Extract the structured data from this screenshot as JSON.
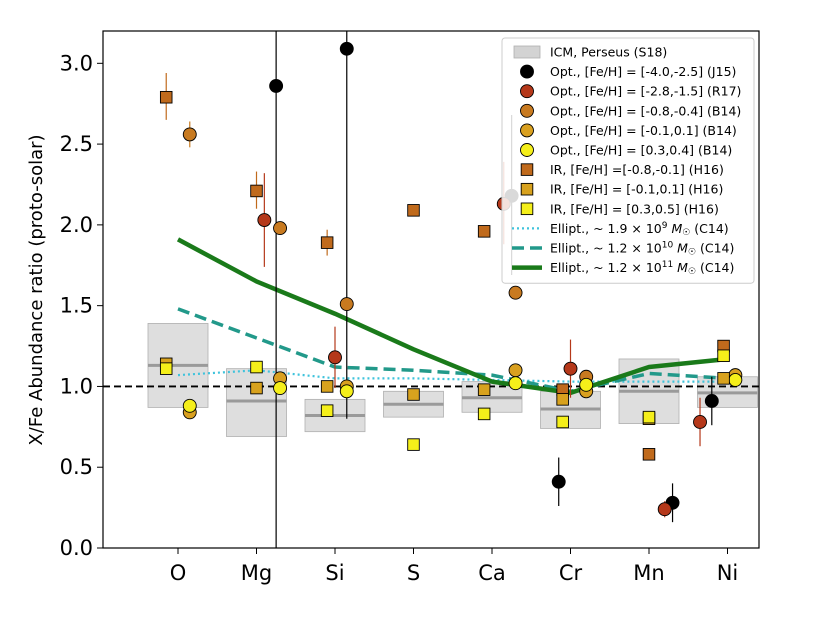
{
  "chart_data": {
    "type": "scatter",
    "title": "",
    "xlabel": "",
    "ylabel": "X/Fe Abundance ratio (proto-solar)",
    "categories": [
      "O",
      "Mg",
      "Si",
      "S",
      "Ca",
      "Cr",
      "Mn",
      "Ni"
    ],
    "ylim": [
      0.0,
      3.2
    ],
    "yticks": [
      "0.0",
      "0.5",
      "1.0",
      "1.5",
      "2.0",
      "2.5",
      "3.0"
    ],
    "reference_line": 1.0,
    "icm_boxes": [
      {
        "element": "O",
        "low": 0.87,
        "high": 1.39,
        "mean": 1.13
      },
      {
        "element": "Mg",
        "low": 0.69,
        "high": 1.11,
        "mean": 0.91
      },
      {
        "element": "Si",
        "low": 0.72,
        "high": 0.92,
        "mean": 0.82
      },
      {
        "element": "S",
        "low": 0.81,
        "high": 0.97,
        "mean": 0.89
      },
      {
        "element": "Ca",
        "low": 0.84,
        "high": 1.03,
        "mean": 0.93
      },
      {
        "element": "Cr",
        "low": 0.74,
        "high": 0.97,
        "mean": 0.86
      },
      {
        "element": "Mn",
        "low": 0.77,
        "high": 1.17,
        "mean": 0.97
      },
      {
        "element": "Ni",
        "low": 0.87,
        "high": 1.06,
        "mean": 0.96
      }
    ],
    "series": [
      {
        "name": "ICM, Perseus (S18)",
        "marker": "box",
        "color": "#d8d8d8"
      },
      {
        "name": "Opt., [Fe/H] = [-4.0,-2.5] (J15)",
        "marker": "circle",
        "color": "#000000",
        "points": [
          {
            "x": "Mg",
            "dx": 0.25,
            "y": 2.86,
            "lo": 0.0,
            "hi": 3.2
          },
          {
            "x": "Si",
            "dx": 0.15,
            "y": 3.09,
            "lo": 0.8,
            "hi": 3.2
          },
          {
            "x": "Ca",
            "dx": 0.25,
            "y": 2.18,
            "lo": 1.69,
            "hi": 2.68
          },
          {
            "x": "Cr",
            "dx": -0.15,
            "y": 0.41,
            "lo": 0.26,
            "hi": 0.56
          },
          {
            "x": "Mn",
            "dx": 0.3,
            "y": 0.28,
            "lo": 0.16,
            "hi": 0.4
          },
          {
            "x": "Ni",
            "dx": -0.2,
            "y": 0.91,
            "lo": 0.76,
            "hi": 1.06
          }
        ]
      },
      {
        "name": "Opt., [Fe/H] = [-2.8,-1.5] (R17)",
        "marker": "circle",
        "color": "#b5381a",
        "points": [
          {
            "x": "Mg",
            "dx": 0.1,
            "y": 2.03,
            "lo": 1.74,
            "hi": 2.32
          },
          {
            "x": "Si",
            "dx": 0.0,
            "y": 1.18,
            "lo": 0.99,
            "hi": 1.37
          },
          {
            "x": "Ca",
            "dx": 0.15,
            "y": 2.13,
            "lo": 1.88,
            "hi": 2.39
          },
          {
            "x": "Cr",
            "dx": 0.0,
            "y": 1.11,
            "lo": 0.93,
            "hi": 1.29
          },
          {
            "x": "Mn",
            "dx": 0.2,
            "y": 0.24,
            "lo": 0.19,
            "hi": 0.29
          },
          {
            "x": "Ni",
            "dx": -0.35,
            "y": 0.78,
            "lo": 0.63,
            "hi": 0.93
          }
        ]
      },
      {
        "name": "Opt., [Fe/H] = [-0.8,-0.4] (B14)",
        "marker": "circle",
        "color": "#c87a20",
        "points": [
          {
            "x": "O",
            "dx": 0.15,
            "y": 2.56,
            "lo": 2.48,
            "hi": 2.64
          },
          {
            "x": "Mg",
            "dx": 0.3,
            "y": 1.98,
            "lo": 1.98,
            "hi": 1.98
          },
          {
            "x": "Si",
            "dx": 0.15,
            "y": 1.51,
            "lo": 1.51,
            "hi": 1.51
          },
          {
            "x": "Ca",
            "dx": 0.3,
            "y": 1.58,
            "lo": 1.58,
            "hi": 1.58
          },
          {
            "x": "Cr",
            "dx": 0.2,
            "y": 1.06,
            "lo": 1.06,
            "hi": 1.06
          }
        ]
      },
      {
        "name": "Opt., [Fe/H] = [-0.1,0.1] (B14)",
        "marker": "circle",
        "color": "#d9a020",
        "points": [
          {
            "x": "O",
            "dx": 0.15,
            "y": 0.84,
            "lo": 0.84,
            "hi": 0.84
          },
          {
            "x": "Mg",
            "dx": 0.3,
            "y": 1.05,
            "lo": 1.05,
            "hi": 1.05
          },
          {
            "x": "Si",
            "dx": 0.15,
            "y": 1.0,
            "lo": 1.0,
            "hi": 1.0
          },
          {
            "x": "Ca",
            "dx": 0.3,
            "y": 1.1,
            "lo": 1.1,
            "hi": 1.1
          },
          {
            "x": "Cr",
            "dx": 0.2,
            "y": 0.97,
            "lo": 0.97,
            "hi": 0.97
          },
          {
            "x": "Ni",
            "dx": 0.1,
            "y": 1.07,
            "lo": 1.07,
            "hi": 1.07
          }
        ]
      },
      {
        "name": "Opt., [Fe/H] = [0.3,0.4] (B14)",
        "marker": "circle",
        "color": "#f5ef1a",
        "points": [
          {
            "x": "O",
            "dx": 0.15,
            "y": 0.88,
            "lo": 0.88,
            "hi": 0.88
          },
          {
            "x": "Mg",
            "dx": 0.3,
            "y": 0.99,
            "lo": 0.99,
            "hi": 0.99
          },
          {
            "x": "Si",
            "dx": 0.15,
            "y": 0.97,
            "lo": 0.97,
            "hi": 0.97
          },
          {
            "x": "Ca",
            "dx": 0.3,
            "y": 1.02,
            "lo": 1.02,
            "hi": 1.02
          },
          {
            "x": "Cr",
            "dx": 0.2,
            "y": 1.01,
            "lo": 1.01,
            "hi": 1.01
          },
          {
            "x": "Ni",
            "dx": 0.1,
            "y": 1.04,
            "lo": 1.04,
            "hi": 1.04
          }
        ]
      },
      {
        "name": "IR, [Fe/H] =[-0.8,-0.1] (H16)",
        "marker": "square",
        "color": "#c06a1c",
        "points": [
          {
            "x": "O",
            "dx": -0.15,
            "y": 2.79,
            "lo": 2.65,
            "hi": 2.94
          },
          {
            "x": "Mg",
            "dx": 0.0,
            "y": 2.21,
            "lo": 2.1,
            "hi": 2.33
          },
          {
            "x": "Si",
            "dx": -0.1,
            "y": 1.89,
            "lo": 1.81,
            "hi": 1.97
          },
          {
            "x": "S",
            "dx": 0.0,
            "y": 2.09,
            "lo": 2.09,
            "hi": 2.09
          },
          {
            "x": "Ca",
            "dx": -0.1,
            "y": 1.96,
            "lo": 1.96,
            "hi": 1.96
          },
          {
            "x": "Cr",
            "dx": -0.1,
            "y": 0.98,
            "lo": 0.98,
            "hi": 0.98
          },
          {
            "x": "Mn",
            "dx": 0.0,
            "y": 0.58,
            "lo": 0.58,
            "hi": 0.58
          },
          {
            "x": "Ni",
            "dx": -0.05,
            "y": 1.25,
            "lo": 1.25,
            "hi": 1.25
          }
        ]
      },
      {
        "name": "IR, [Fe/H] = [-0.1,0.1] (H16)",
        "marker": "square",
        "color": "#d8a21e",
        "points": [
          {
            "x": "O",
            "dx": -0.15,
            "y": 1.14,
            "lo": 1.14,
            "hi": 1.14
          },
          {
            "x": "Mg",
            "dx": 0.0,
            "y": 0.99,
            "lo": 0.99,
            "hi": 0.99
          },
          {
            "x": "Si",
            "dx": -0.1,
            "y": 1.0,
            "lo": 1.0,
            "hi": 1.0
          },
          {
            "x": "S",
            "dx": 0.0,
            "y": 0.95,
            "lo": 0.95,
            "hi": 0.95
          },
          {
            "x": "Ca",
            "dx": -0.1,
            "y": 0.98,
            "lo": 0.98,
            "hi": 0.98
          },
          {
            "x": "Cr",
            "dx": -0.1,
            "y": 0.92,
            "lo": 0.92,
            "hi": 0.92
          },
          {
            "x": "Mn",
            "dx": 0.0,
            "y": 0.8,
            "lo": 0.8,
            "hi": 0.8
          },
          {
            "x": "Ni",
            "dx": -0.05,
            "y": 1.05,
            "lo": 1.05,
            "hi": 1.05
          }
        ]
      },
      {
        "name": "IR, [Fe/H] = [0.3,0.5] (H16)",
        "marker": "square",
        "color": "#f5ef1a",
        "points": [
          {
            "x": "O",
            "dx": -0.15,
            "y": 1.11,
            "lo": 1.11,
            "hi": 1.11
          },
          {
            "x": "Mg",
            "dx": 0.0,
            "y": 1.12,
            "lo": 1.12,
            "hi": 1.12
          },
          {
            "x": "Si",
            "dx": -0.1,
            "y": 0.85,
            "lo": 0.85,
            "hi": 0.85
          },
          {
            "x": "S",
            "dx": 0.0,
            "y": 0.64,
            "lo": 0.64,
            "hi": 0.64
          },
          {
            "x": "Ca",
            "dx": -0.1,
            "y": 0.83,
            "lo": 0.83,
            "hi": 0.83
          },
          {
            "x": "Cr",
            "dx": -0.1,
            "y": 0.78,
            "lo": 0.78,
            "hi": 0.78
          },
          {
            "x": "Mn",
            "dx": 0.0,
            "y": 0.81,
            "lo": 0.81,
            "hi": 0.81
          },
          {
            "x": "Ni",
            "dx": -0.05,
            "y": 1.19,
            "lo": 1.19,
            "hi": 1.19
          }
        ]
      }
    ],
    "models": [
      {
        "name": "Ellipt., ~1.9×10⁹ M☉ (C14)",
        "label_prefix": "Ellipt., ~ 1.9",
        "label_exp": "9",
        "label_suffix": "(C14)",
        "style": "dotted",
        "color": "#3fc3dc",
        "values": [
          1.07,
          1.1,
          1.05,
          1.05,
          1.04,
          1.03,
          1.03,
          1.03
        ]
      },
      {
        "name": "Ellipt., ~1.2×10¹⁰ M☉ (C14)",
        "label_prefix": "Ellipt., ~ 1.2",
        "label_exp": "10",
        "label_suffix": "(C14)",
        "style": "dashed",
        "color": "#22998a",
        "values": [
          1.48,
          1.3,
          1.12,
          1.1,
          1.07,
          0.97,
          1.08,
          1.05
        ]
      },
      {
        "name": "Ellipt., ~1.2×10¹¹ M☉ (C14)",
        "label_prefix": "Ellipt., ~ 1.2",
        "label_exp": "11",
        "label_suffix": "(C14)",
        "style": "solid",
        "color": "#1a7a1a",
        "values": [
          1.91,
          1.65,
          1.45,
          1.23,
          1.03,
          0.96,
          1.12,
          1.17
        ]
      }
    ],
    "legend_position": "top-right"
  }
}
